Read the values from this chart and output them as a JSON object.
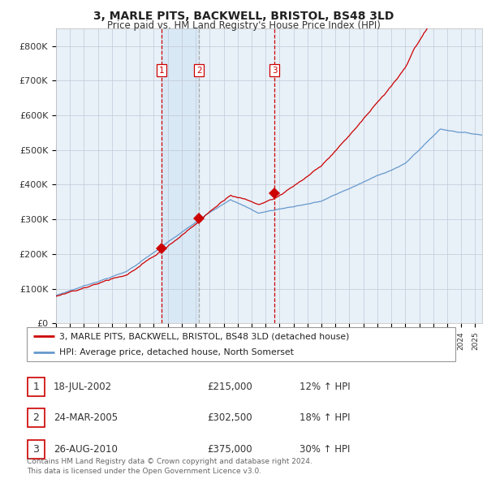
{
  "title": "3, MARLE PITS, BACKWELL, BRISTOL, BS48 3LD",
  "subtitle": "Price paid vs. HM Land Registry's House Price Index (HPI)",
  "xlim_start": 1995.0,
  "xlim_end": 2025.5,
  "ylim": [
    0,
    850000
  ],
  "yticks": [
    0,
    100000,
    200000,
    300000,
    400000,
    500000,
    600000,
    700000,
    800000
  ],
  "ytick_labels": [
    "£0",
    "£100K",
    "£200K",
    "£300K",
    "£400K",
    "£500K",
    "£600K",
    "£700K",
    "£800K"
  ],
  "sale_color": "#cc0000",
  "sale2_vline_color": "#aaaaaa",
  "hpi_color": "#6699cc",
  "chart_bg": "#e8f0f8",
  "sale_dates": [
    2002.54,
    2005.23,
    2010.65
  ],
  "sale_prices": [
    215000,
    302500,
    375000
  ],
  "sale_labels": [
    "1",
    "2",
    "3"
  ],
  "vline_colors": [
    "#cc0000",
    "#aaaaaa",
    "#cc0000"
  ],
  "legend_sale_label": "3, MARLE PITS, BACKWELL, BRISTOL, BS48 3LD (detached house)",
  "legend_hpi_label": "HPI: Average price, detached house, North Somerset",
  "table_data": [
    {
      "num": "1",
      "date": "18-JUL-2002",
      "price": "£215,000",
      "hpi": "12% ↑ HPI"
    },
    {
      "num": "2",
      "date": "24-MAR-2005",
      "price": "£302,500",
      "hpi": "18% ↑ HPI"
    },
    {
      "num": "3",
      "date": "26-AUG-2010",
      "price": "£375,000",
      "hpi": "30% ↑ HPI"
    }
  ],
  "footnote": "Contains HM Land Registry data © Crown copyright and database right 2024.\nThis data is licensed under the Open Government Licence v3.0.",
  "background_color": "#ffffff",
  "grid_color": "#c0c8d8"
}
